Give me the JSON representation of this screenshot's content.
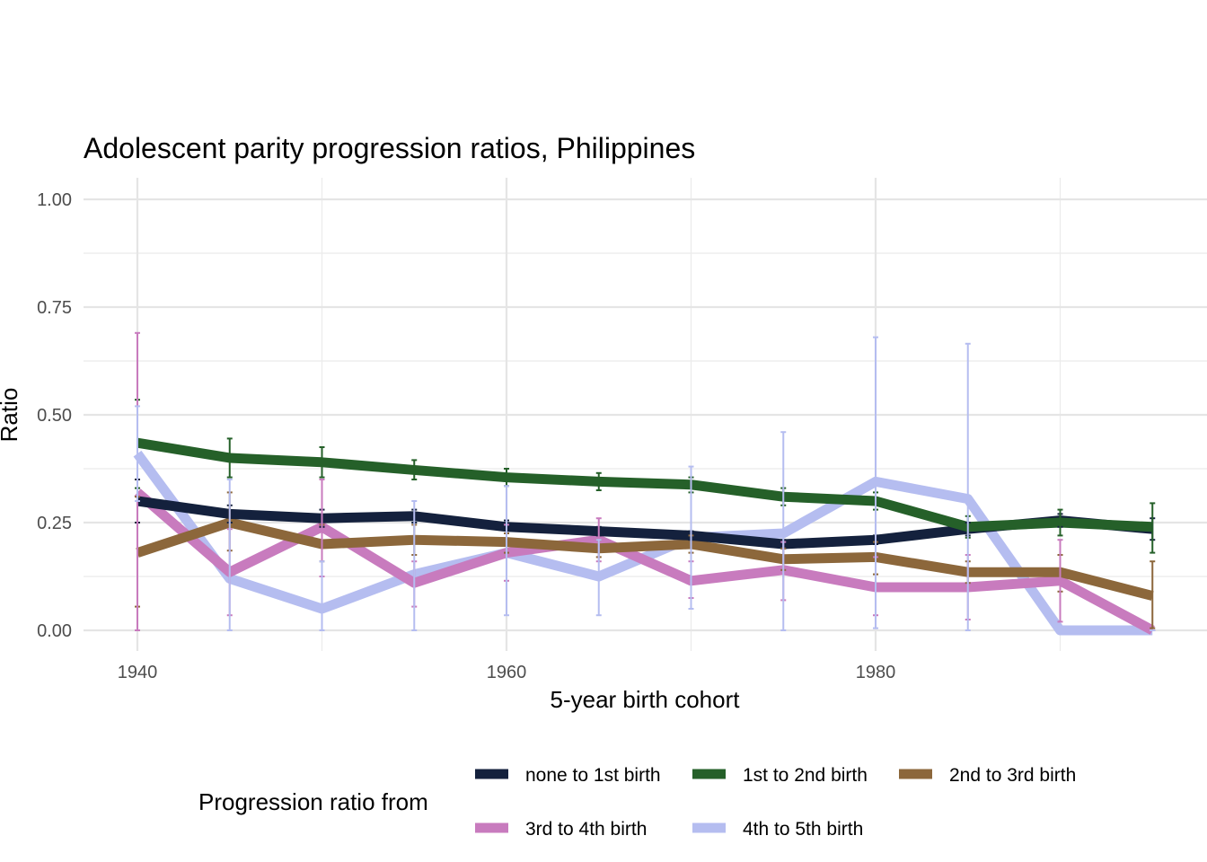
{
  "chart_data": {
    "type": "line",
    "title": "Adolescent parity progression ratios,  Philippines",
    "xlabel": "5-year birth cohort",
    "ylabel": "Ratio",
    "xlim": [
      1937,
      1999
    ],
    "ylim": [
      0,
      1
    ],
    "x_ticks": [
      1940,
      1960,
      1980
    ],
    "x_tick_labels": [
      "1940",
      "1960",
      "1980"
    ],
    "y_ticks": [
      0,
      0.25,
      0.5,
      0.75,
      1.0
    ],
    "y_tick_labels": [
      "0.00",
      "0.25",
      "0.50",
      "0.75",
      "1.00"
    ],
    "grid": true,
    "legend": {
      "title": "Progression ratio from",
      "position": "bottom"
    },
    "x": [
      1940,
      1945,
      1950,
      1955,
      1960,
      1965,
      1970,
      1975,
      1980,
      1985,
      1990,
      1995
    ],
    "series": [
      {
        "name": "none to 1st birth",
        "color": "#14213d",
        "values": [
          0.3,
          0.27,
          0.26,
          0.265,
          0.24,
          0.23,
          0.22,
          0.2,
          0.21,
          0.235,
          0.255,
          0.235
        ],
        "lower": [
          0.25,
          0.25,
          0.24,
          0.25,
          0.225,
          0.22,
          0.21,
          0.19,
          0.2,
          0.22,
          0.24,
          0.21
        ],
        "upper": [
          0.35,
          0.29,
          0.28,
          0.28,
          0.255,
          0.24,
          0.23,
          0.21,
          0.22,
          0.25,
          0.27,
          0.26
        ]
      },
      {
        "name": "1st to 2nd birth",
        "color": "#256029",
        "values": [
          0.435,
          0.4,
          0.39,
          0.372,
          0.355,
          0.345,
          0.338,
          0.31,
          0.3,
          0.24,
          0.25,
          0.24
        ],
        "lower": [
          0.33,
          0.355,
          0.355,
          0.35,
          0.335,
          0.325,
          0.32,
          0.29,
          0.28,
          0.215,
          0.22,
          0.18
        ],
        "upper": [
          0.535,
          0.445,
          0.425,
          0.395,
          0.375,
          0.365,
          0.355,
          0.33,
          0.32,
          0.265,
          0.28,
          0.295
        ]
      },
      {
        "name": "2nd to 3rd birth",
        "color": "#8c673b",
        "values": [
          0.18,
          0.25,
          0.2,
          0.21,
          0.205,
          0.19,
          0.2,
          0.165,
          0.17,
          0.135,
          0.135,
          0.08
        ],
        "lower": [
          0.055,
          0.185,
          0.16,
          0.175,
          0.18,
          0.17,
          0.18,
          0.14,
          0.13,
          0.11,
          0.09,
          0.005
        ],
        "upper": [
          0.31,
          0.32,
          0.245,
          0.245,
          0.225,
          0.21,
          0.22,
          0.19,
          0.205,
          0.16,
          0.175,
          0.16
        ]
      },
      {
        "name": "3rd to 4th birth",
        "color": "#c87bbe",
        "values": [
          0.32,
          0.135,
          0.24,
          0.11,
          0.18,
          0.21,
          0.115,
          0.14,
          0.1,
          0.1,
          0.115,
          0.0
        ],
        "lower": [
          0.0,
          0.035,
          0.125,
          0.055,
          0.115,
          0.16,
          0.075,
          0.07,
          0.035,
          0.025,
          0.02,
          0.0
        ],
        "upper": [
          0.69,
          0.235,
          0.35,
          0.16,
          0.245,
          0.26,
          0.16,
          0.205,
          0.17,
          0.175,
          0.21,
          0.0
        ]
      },
      {
        "name": "4th to 5th birth",
        "color": "#b5bdf0",
        "values": [
          0.41,
          0.12,
          0.05,
          0.13,
          0.18,
          0.125,
          0.215,
          0.225,
          0.345,
          0.305,
          0.0,
          0.0
        ],
        "lower": [
          0.3,
          0.0,
          0.0,
          0.0,
          0.035,
          0.035,
          0.05,
          0.0,
          0.005,
          0.0,
          0.0,
          0.0
        ],
        "upper": [
          0.52,
          0.35,
          0.16,
          0.3,
          0.335,
          0.21,
          0.38,
          0.46,
          0.68,
          0.665,
          0.0,
          0.0
        ]
      }
    ]
  }
}
